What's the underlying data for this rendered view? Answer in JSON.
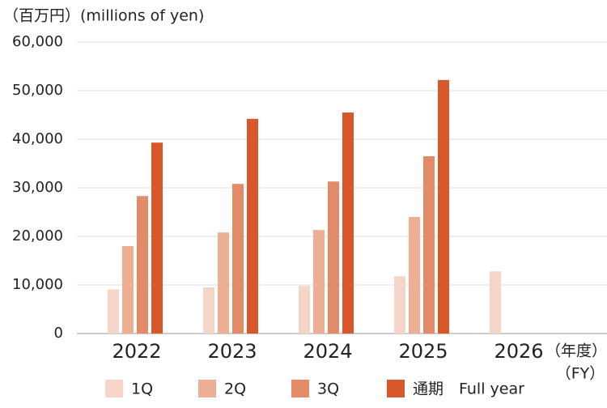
{
  "chart_data": {
    "type": "bar",
    "title": "（百万円）(millions of yen)",
    "categories": [
      "2022",
      "2023",
      "2024",
      "2025",
      "2026"
    ],
    "series": [
      {
        "name": "1Q",
        "color": "#f5d5c8",
        "values": [
          9100,
          9500,
          9800,
          11800,
          12800
        ]
      },
      {
        "name": "2Q",
        "color": "#eeae94",
        "values": [
          18000,
          20800,
          21300,
          24000,
          null
        ]
      },
      {
        "name": "3Q",
        "color": "#e38a68",
        "values": [
          28300,
          30800,
          31300,
          36500,
          null
        ]
      },
      {
        "name": "通期　Full year",
        "color": "#d9582a",
        "values": [
          39300,
          44200,
          45500,
          52200,
          null
        ]
      }
    ],
    "x_label": "（年度）",
    "x_label_en": "（FY）",
    "ylim": [
      0,
      60000
    ],
    "yticks": [
      0,
      {
        "value": 10000,
        "label": "10,000"
      },
      {
        "value": 20000,
        "label": "20,000"
      },
      {
        "value": 30000,
        "label": "30,000"
      },
      {
        "value": 40000,
        "label": "40,000"
      },
      {
        "value": 50000,
        "label": "50,000"
      },
      {
        "value": 60000,
        "label": "60,000"
      }
    ],
    "grid": true
  }
}
